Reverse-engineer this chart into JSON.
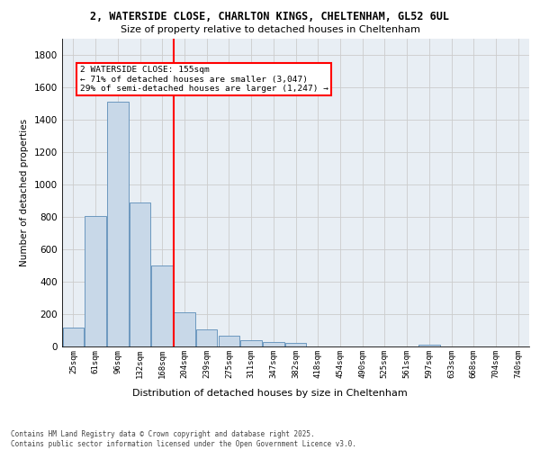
{
  "title_line1": "2, WATERSIDE CLOSE, CHARLTON KINGS, CHELTENHAM, GL52 6UL",
  "title_line2": "Size of property relative to detached houses in Cheltenham",
  "xlabel": "Distribution of detached houses by size in Cheltenham",
  "ylabel": "Number of detached properties",
  "footer": "Contains HM Land Registry data © Crown copyright and database right 2025.\nContains public sector information licensed under the Open Government Licence v3.0.",
  "categories": [
    "25sqm",
    "61sqm",
    "96sqm",
    "132sqm",
    "168sqm",
    "204sqm",
    "239sqm",
    "275sqm",
    "311sqm",
    "347sqm",
    "382sqm",
    "418sqm",
    "454sqm",
    "490sqm",
    "525sqm",
    "561sqm",
    "597sqm",
    "633sqm",
    "668sqm",
    "704sqm",
    "740sqm"
  ],
  "values": [
    115,
    805,
    1510,
    885,
    500,
    210,
    105,
    65,
    40,
    30,
    22,
    0,
    0,
    0,
    0,
    0,
    10,
    0,
    0,
    0,
    0
  ],
  "bar_color": "#c8d8e8",
  "bar_edge_color": "#5b8db8",
  "grid_color": "#cccccc",
  "background_color": "#e8eef4",
  "vline_x_index": 4,
  "vline_color": "red",
  "annotation_text_line1": "2 WATERSIDE CLOSE: 155sqm",
  "annotation_text_line2": "← 71% of detached houses are smaller (3,047)",
  "annotation_text_line3": "29% of semi-detached houses are larger (1,247) →",
  "annotation_box_color": "red",
  "ylim": [
    0,
    1900
  ],
  "yticks": [
    0,
    200,
    400,
    600,
    800,
    1000,
    1200,
    1400,
    1600,
    1800
  ],
  "title1_fontsize": 8.5,
  "title2_fontsize": 8,
  "ylabel_fontsize": 7.5,
  "xlabel_fontsize": 8,
  "tick_fontsize": 6.5,
  "footer_fontsize": 5.5,
  "annotation_fontsize": 6.8
}
